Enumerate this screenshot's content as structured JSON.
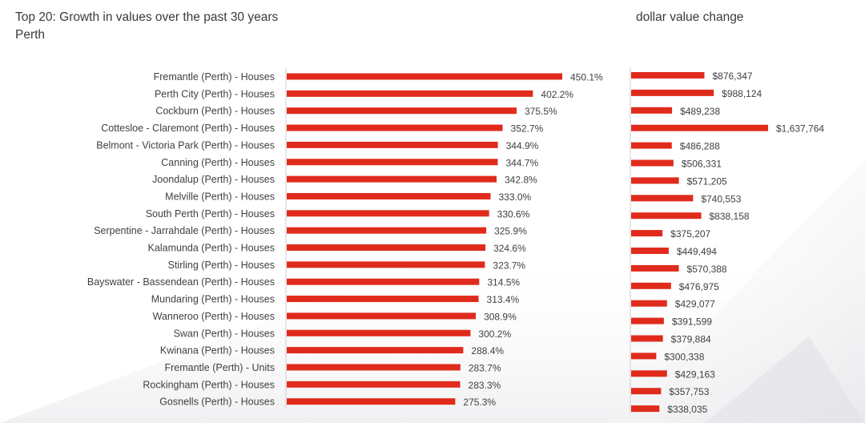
{
  "header": {
    "title": "Top 20:  Growth in values over the past 30 years",
    "subtitle": "Perth",
    "right_title": "dollar value change"
  },
  "colors": {
    "bar": "#e02b1c",
    "axis": "#cfcfcf",
    "text": "#404040"
  },
  "chart_data": [
    {
      "type": "bar",
      "orientation": "horizontal",
      "title": "Top 20:  Growth in values over the past 30 years",
      "subtitle": "Perth",
      "categories": [
        "Fremantle (Perth) - Houses",
        "Perth City (Perth) - Houses",
        "Cockburn (Perth) - Houses",
        "Cottesloe - Claremont (Perth) - Houses",
        "Belmont - Victoria Park (Perth) - Houses",
        "Canning (Perth) - Houses",
        "Joondalup (Perth) - Houses",
        "Melville (Perth) - Houses",
        "South Perth (Perth) - Houses",
        "Serpentine - Jarrahdale (Perth) - Houses",
        "Kalamunda (Perth) - Houses",
        "Stirling (Perth) - Houses",
        "Bayswater - Bassendean (Perth) - Houses",
        "Mundaring (Perth) - Houses",
        "Wanneroo (Perth) - Houses",
        "Swan (Perth) - Houses",
        "Kwinana (Perth) - Houses",
        "Fremantle (Perth) - Units",
        "Rockingham (Perth) - Houses",
        "Gosnells (Perth) - Houses"
      ],
      "values": [
        450.1,
        402.2,
        375.5,
        352.7,
        344.9,
        344.7,
        342.8,
        333.0,
        330.6,
        325.9,
        324.6,
        323.7,
        314.5,
        313.4,
        308.9,
        300.2,
        288.4,
        283.7,
        283.3,
        275.3
      ],
      "value_labels": [
        "450.1%",
        "402.2%",
        "375.5%",
        "352.7%",
        "344.9%",
        "344.7%",
        "342.8%",
        "333.0%",
        "330.6%",
        "325.9%",
        "324.6%",
        "323.7%",
        "314.5%",
        "313.4%",
        "308.9%",
        "300.2%",
        "288.4%",
        "283.7%",
        "283.3%",
        "275.3%"
      ],
      "unit": "%",
      "grid": false,
      "legend": "none"
    },
    {
      "type": "bar",
      "orientation": "horizontal",
      "title": "dollar value change",
      "values": [
        876347,
        988124,
        489238,
        1637764,
        486288,
        506331,
        571205,
        740553,
        838158,
        375207,
        449494,
        570388,
        476975,
        429077,
        391599,
        379884,
        300338,
        429163,
        357753,
        338035
      ],
      "value_labels": [
        "$876,347",
        "$988,124",
        "$489,238",
        "$1,637,764",
        "$486,288",
        "$506,331",
        "$571,205",
        "$740,553",
        "$838,158",
        "$375,207",
        "$449,494",
        "$570,388",
        "$476,975",
        "$429,077",
        "$391,599",
        "$379,884",
        "$300,338",
        "$429,163",
        "$357,753",
        "$338,035"
      ],
      "grid": false,
      "legend": "none"
    }
  ]
}
